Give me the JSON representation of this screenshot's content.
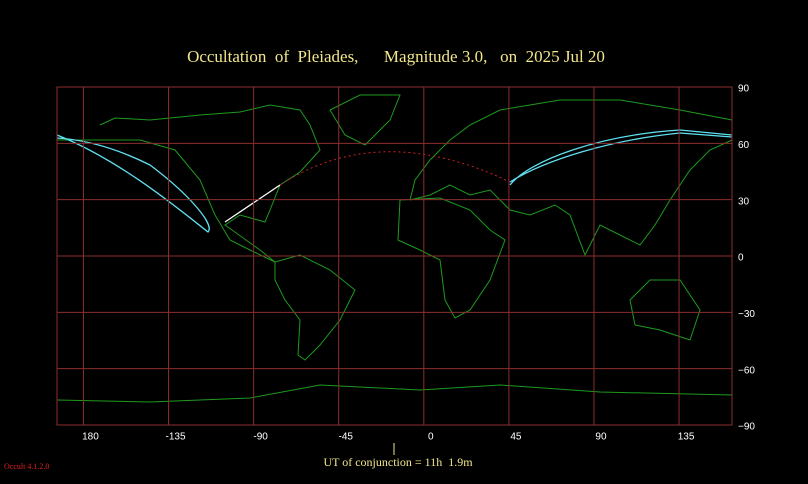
{
  "chart_data": {
    "type": "map",
    "title": "Occultation  of  Pleiades,      Magnitude 3.0,   on  2025 Jul 20",
    "footer": "UT of conjunction = 11h  1.9m",
    "version": "Occult 4.1.2.0",
    "xlim": [
      -194,
      163
    ],
    "ylim": [
      -90,
      90
    ],
    "xticks": [
      180,
      -135,
      -90,
      -45,
      0,
      45,
      90,
      135
    ],
    "yticks": [
      {
        "value": 90,
        "label": "90"
      },
      {
        "value": 60,
        "label": "60"
      },
      {
        "value": 30,
        "label": "30"
      },
      {
        "value": 0,
        "label": "0"
      },
      {
        "value": -30,
        "label": "−30"
      },
      {
        "value": -60,
        "label": "−60"
      },
      {
        "value": -90,
        "label": "−90"
      }
    ],
    "grid": true
  }
}
